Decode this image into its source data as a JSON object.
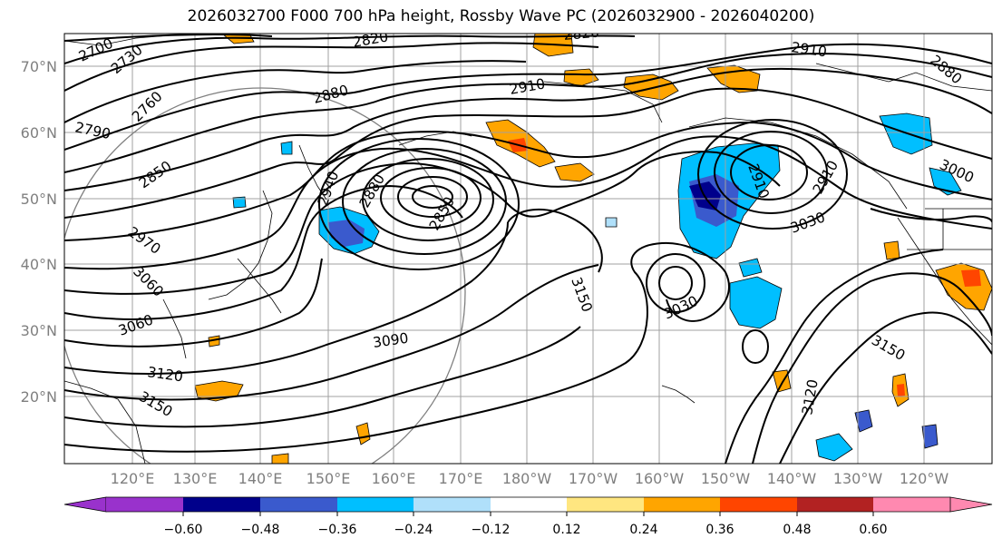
{
  "title": "2026032700 F000 700 hPa height, Rossby Wave PC (2026032900 - 2026040200)",
  "lat_labels": [
    "70°N",
    "60°N",
    "50°N",
    "40°N",
    "30°N",
    "20°N"
  ],
  "lon_labels": [
    "120°E",
    "130°E",
    "140°E",
    "150°E",
    "160°E",
    "170°E",
    "180°W",
    "170°W",
    "160°W",
    "150°W",
    "140°W",
    "130°W",
    "120°W"
  ],
  "contour_labels": [
    "2700",
    "2730",
    "2760",
    "2790",
    "2820",
    "2820",
    "2850",
    "2880",
    "2910",
    "2910",
    "2910",
    "2940",
    "2880",
    "2850",
    "2970",
    "3060",
    "3060",
    "3090",
    "3120",
    "3150",
    "3150",
    "3030",
    "3030",
    "3000",
    "2910",
    "2880",
    "3120",
    "3150"
  ],
  "colorbar": {
    "tick_labels": [
      "−0.60",
      "−0.48",
      "−0.36",
      "−0.24",
      "−0.12",
      "0.12",
      "0.24",
      "0.36",
      "0.48",
      "0.60"
    ],
    "colors": [
      "#9932cc",
      "#00008b",
      "#3a5acd",
      "#00bfff",
      "#b0e0fa",
      "#ffffff",
      "#ffe680",
      "#ffa500",
      "#ff4500",
      "#b22222",
      "#ff89b0"
    ]
  },
  "colors": {
    "neg_strong": "#00008b",
    "neg_mid": "#3a5acd",
    "neg_light": "#00bfff",
    "pos_light": "#ffa500",
    "pos_strong": "#ff4500",
    "grid": "#a0a0a0"
  }
}
